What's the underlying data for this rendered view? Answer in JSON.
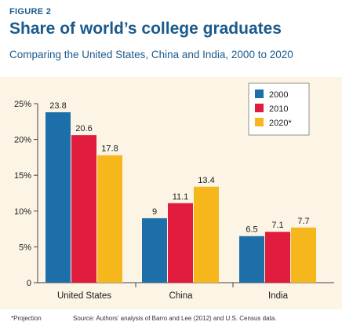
{
  "figure": {
    "label": "FIGURE 2",
    "title": "Share of world’s college graduates",
    "subtitle": "Comparing the United States, China and India, 2000 to 2020",
    "footnote": "*Projection",
    "source": "Source: Authors’ analysis of Barro and Lee (2012) and U.S. Census data."
  },
  "chart_data": {
    "type": "bar",
    "categories": [
      "United States",
      "China",
      "India"
    ],
    "series": [
      {
        "name": "2000",
        "values": [
          23.8,
          9,
          6.5
        ],
        "labels": [
          "23.8",
          "9",
          "6.5"
        ],
        "color": "#1c6fa8"
      },
      {
        "name": "2010",
        "values": [
          20.6,
          11.1,
          7.1
        ],
        "labels": [
          "20.6",
          "11.1",
          "7.1"
        ],
        "color": "#e01b3c"
      },
      {
        "name": "2020*",
        "values": [
          17.8,
          13.4,
          7.7
        ],
        "labels": [
          "17.8",
          "13.4",
          "7.7"
        ],
        "color": "#f5b71c"
      }
    ],
    "yticks": [
      0,
      5,
      10,
      15,
      20,
      25
    ],
    "ytick_labels": [
      "0",
      "5%",
      "10%",
      "15%",
      "20%",
      "25%"
    ],
    "ylim": [
      0,
      25
    ],
    "legend_position": "top-right",
    "grid": false,
    "background": "#fcf5e6"
  }
}
